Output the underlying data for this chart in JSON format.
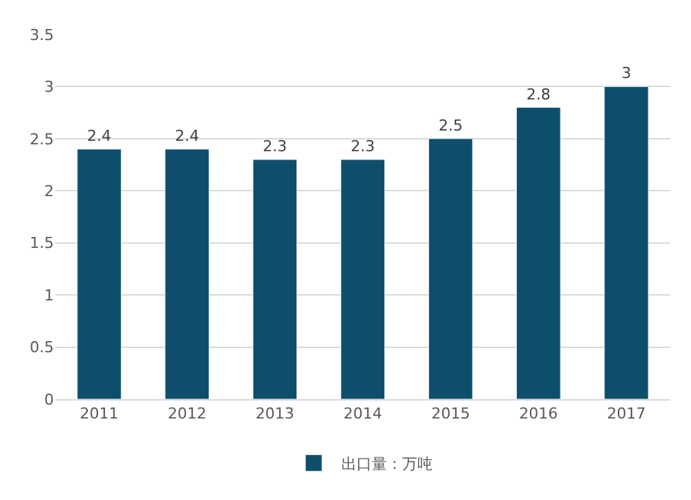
{
  "chart_data": {
    "type": "bar",
    "categories": [
      "2011",
      "2012",
      "2013",
      "2014",
      "2015",
      "2016",
      "2017"
    ],
    "series": [
      {
        "name": "出口量：万吨",
        "color": "#0d4f6b",
        "values": [
          2.4,
          2.4,
          2.3,
          2.3,
          2.5,
          2.8,
          3
        ]
      }
    ],
    "ylim": [
      0,
      3.5
    ],
    "yticks": [
      0,
      0.5,
      1,
      1.5,
      2,
      2.5,
      3,
      3.5
    ],
    "grid": "y",
    "legend": "bottom",
    "data_labels": true
  }
}
